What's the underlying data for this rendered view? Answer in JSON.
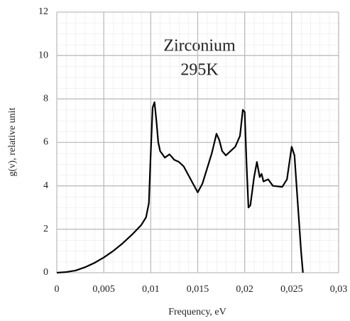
{
  "chart_data": {
    "type": "line",
    "title": [
      "Zirconium",
      "295K"
    ],
    "x_label": "Frequency, eV",
    "y_label": "g(ν), relative unit",
    "x": [
      0,
      0.001,
      0.002,
      0.003,
      0.004,
      0.005,
      0.006,
      0.007,
      0.008,
      0.009,
      0.0095,
      0.0098,
      0.01,
      0.0102,
      0.0104,
      0.0106,
      0.0108,
      0.011,
      0.0115,
      0.012,
      0.0125,
      0.013,
      0.0135,
      0.014,
      0.0145,
      0.015,
      0.0155,
      0.016,
      0.0165,
      0.017,
      0.0173,
      0.0176,
      0.018,
      0.0185,
      0.019,
      0.0195,
      0.0198,
      0.02,
      0.0202,
      0.0204,
      0.0206,
      0.021,
      0.0213,
      0.0216,
      0.0218,
      0.022,
      0.0225,
      0.023,
      0.024,
      0.0245,
      0.025,
      0.0253,
      0.0256,
      0.026,
      0.0262
    ],
    "series": [
      {
        "color": "#000000",
        "values": [
          0,
          0.03,
          0.1,
          0.25,
          0.45,
          0.7,
          1.0,
          1.35,
          1.75,
          2.2,
          2.55,
          3.2,
          5.5,
          7.6,
          7.85,
          7.0,
          6.0,
          5.6,
          5.3,
          5.45,
          5.2,
          5.1,
          4.9,
          4.5,
          4.1,
          3.7,
          4.1,
          4.8,
          5.5,
          6.4,
          6.1,
          5.6,
          5.4,
          5.6,
          5.8,
          6.3,
          7.5,
          7.4,
          5.0,
          3.0,
          3.1,
          4.4,
          5.1,
          4.4,
          4.55,
          4.2,
          4.3,
          4.0,
          3.95,
          4.3,
          5.8,
          5.4,
          3.5,
          1.0,
          0
        ]
      }
    ],
    "xlim": [
      0,
      0.03
    ],
    "xticks": [
      0,
      {
        "value": 0.005,
        "label": "0,005"
      },
      {
        "value": 0.01,
        "label": "0,01"
      },
      {
        "value": 0.015,
        "label": "0,015"
      },
      {
        "value": 0.02,
        "label": "0,02"
      },
      {
        "value": 0.025,
        "label": "0,025"
      },
      {
        "value": 0.03,
        "label": "0,03"
      }
    ],
    "ylim": [
      0,
      12
    ],
    "yticks": [
      0,
      2,
      4,
      6,
      8,
      10,
      12
    ],
    "grid": true
  }
}
